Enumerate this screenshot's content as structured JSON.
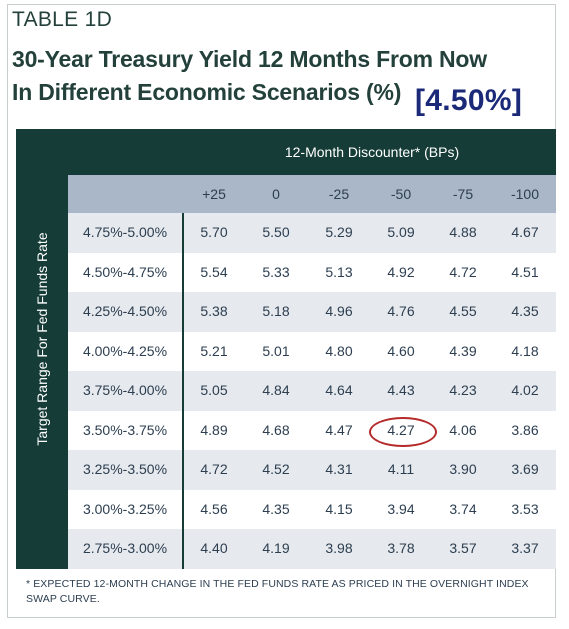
{
  "table_label": "TABLE 1D",
  "title_line1": "30-Year Treasury Yield 12 Months From Now",
  "title_line2": "In Different Economic Scenarios (%)",
  "highlight_tag": "[4.50%]",
  "column_group_header": "12-Month Discounter* (BPs)",
  "row_group_header": "Target Range For Fed Funds Rate",
  "columns": [
    "+25",
    "0",
    "-25",
    "-50",
    "-75",
    "-100"
  ],
  "rows": [
    {
      "label": "4.75%-5.00%",
      "values": [
        "5.70",
        "5.50",
        "5.29",
        "5.09",
        "4.88",
        "4.67"
      ]
    },
    {
      "label": "4.50%-4.75%",
      "values": [
        "5.54",
        "5.33",
        "5.13",
        "4.92",
        "4.72",
        "4.51"
      ]
    },
    {
      "label": "4.25%-4.50%",
      "values": [
        "5.38",
        "5.18",
        "4.96",
        "4.76",
        "4.55",
        "4.35"
      ]
    },
    {
      "label": "4.00%-4.25%",
      "values": [
        "5.21",
        "5.01",
        "4.80",
        "4.60",
        "4.39",
        "4.18"
      ]
    },
    {
      "label": "3.75%-4.00%",
      "values": [
        "5.05",
        "4.84",
        "4.64",
        "4.43",
        "4.23",
        "4.02"
      ]
    },
    {
      "label": "3.50%-3.75%",
      "values": [
        "4.89",
        "4.68",
        "4.47",
        "4.27",
        "4.06",
        "3.86"
      ]
    },
    {
      "label": "3.25%-3.50%",
      "values": [
        "4.72",
        "4.52",
        "4.31",
        "4.11",
        "3.90",
        "3.69"
      ]
    },
    {
      "label": "3.00%-3.25%",
      "values": [
        "4.56",
        "4.35",
        "4.15",
        "3.94",
        "3.74",
        "3.53"
      ]
    },
    {
      "label": "2.75%-3.00%",
      "values": [
        "4.40",
        "4.19",
        "3.98",
        "3.78",
        "3.57",
        "3.37"
      ]
    }
  ],
  "circled_cell": {
    "row": 5,
    "col": 3
  },
  "footnote": "* EXPECTED 12-MONTH CHANGE IN THE FED FUNDS RATE AS PRICED IN THE OVERNIGHT INDEX SWAP CURVE.",
  "colors": {
    "dark_teal": "#153c37",
    "header_blue_gray": "#a9b7c8",
    "row_shade": "#e6e9ed",
    "title_green": "#23403a",
    "tag_navy": "#1b2a78",
    "circle_red": "#b52a2a"
  }
}
